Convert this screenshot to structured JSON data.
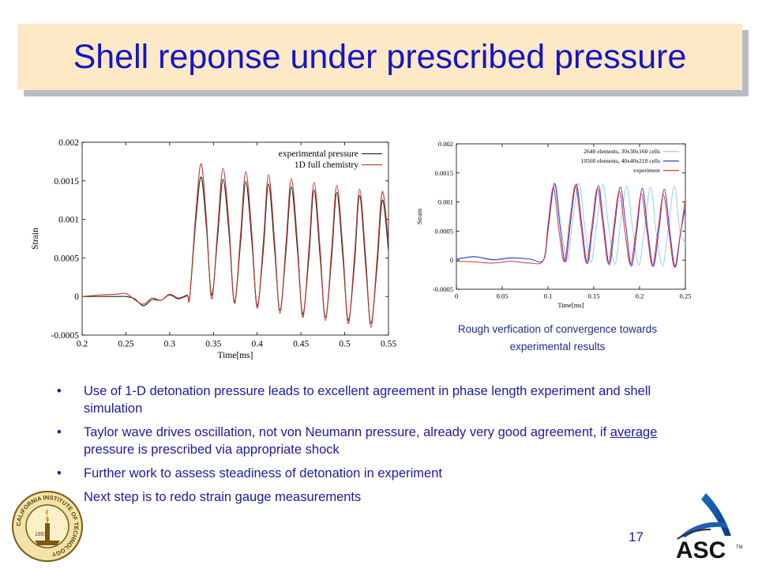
{
  "title": "Shell reponse under prescribed pressure",
  "page_number": "17",
  "caption": {
    "line1": "Rough verfication of convergence towards",
    "line2": "experimental results"
  },
  "bullets": [
    {
      "parts": [
        {
          "text": "Use of 1-D detonation pressure leads to excellent agreement in phase length experiment and shell simulation",
          "u": false
        }
      ]
    },
    {
      "parts": [
        {
          "text": "Taylor wave drives oscillation, not von Neumann pressure, already very good agreement, if ",
          "u": false
        },
        {
          "text": "average",
          "u": true
        },
        {
          "text": " pressure is prescribed via appropriate shock",
          "u": false
        }
      ]
    },
    {
      "parts": [
        {
          "text": "Further work to assess steadiness of detonation in experiment",
          "u": false
        }
      ]
    },
    {
      "parts": [
        {
          "text": "Next step is to redo strain gauge measurements",
          "u": false
        }
      ]
    }
  ],
  "bullet_glyph": "•",
  "logos": {
    "left": {
      "icon": "caltech-seal-icon",
      "ring_text": "CALIFORNIA INSTITUTE OF TECHNOLOGY",
      "year": "1891"
    },
    "right": {
      "icon": "asc-logo-icon",
      "text": "ASC",
      "tm": "TM"
    }
  },
  "chart_data": [
    {
      "type": "line",
      "title": "",
      "xlabel": "Time[ms]",
      "ylabel": "Strain",
      "xlim": [
        0.2,
        0.55
      ],
      "ylim": [
        -0.0005,
        0.002
      ],
      "xticks": [
        0.2,
        0.25,
        0.3,
        0.35,
        0.4,
        0.45,
        0.5,
        0.55
      ],
      "yticks": [
        -0.0005,
        0,
        0.0005,
        0.001,
        0.0015,
        0.002
      ],
      "xtick_labels": [
        "0.2",
        "0.25",
        "0.3",
        "0.35",
        "0.4",
        "0.45",
        "0.5",
        "0.55"
      ],
      "ytick_labels": [
        "-0.0005",
        "0",
        "0.0005",
        "0.001",
        "0.0015",
        "0.002"
      ],
      "legend_position": "top-right",
      "grid": false,
      "series": [
        {
          "name": "experimental pressure",
          "color": "#222222",
          "x": [
            0.2,
            0.24,
            0.25,
            0.26,
            0.27,
            0.28,
            0.29,
            0.3,
            0.31,
            0.32,
            0.323,
            0.33,
            0.336,
            0.342,
            0.348,
            0.355,
            0.361,
            0.368,
            0.374,
            0.381,
            0.387,
            0.394,
            0.4,
            0.407,
            0.413,
            0.42,
            0.426,
            0.433,
            0.439,
            0.446,
            0.452,
            0.459,
            0.465,
            0.472,
            0.478,
            0.485,
            0.491,
            0.498,
            0.504,
            0.511,
            0.517,
            0.524,
            0.53,
            0.537,
            0.543,
            0.55
          ],
          "y": [
            0,
            0,
            0,
            -3e-05,
            -0.00012,
            -4e-05,
            -5e-05,
            2e-05,
            -3e-05,
            1e-05,
            0,
            0.001,
            0.00155,
            0.0009,
            2e-05,
            0.0008,
            0.00152,
            0.0008,
            -7e-05,
            0.0007,
            0.00149,
            0.0007,
            -0.00012,
            0.0006,
            0.00146,
            0.0006,
            -0.00018,
            0.0006,
            0.00142,
            0.0006,
            -0.00023,
            0.0005,
            0.00138,
            0.0005,
            -0.00027,
            0.0005,
            0.00135,
            0.0005,
            -0.00031,
            0.0004,
            0.00131,
            0.0004,
            -0.00035,
            0.0004,
            0.00125,
            0.0006
          ]
        },
        {
          "name": "1D full chemistry",
          "color": "#c0392b",
          "x": [
            0.2,
            0.22,
            0.24,
            0.25,
            0.26,
            0.27,
            0.28,
            0.29,
            0.3,
            0.31,
            0.32,
            0.323,
            0.33,
            0.336,
            0.342,
            0.348,
            0.355,
            0.361,
            0.368,
            0.374,
            0.381,
            0.387,
            0.394,
            0.4,
            0.407,
            0.413,
            0.42,
            0.426,
            0.433,
            0.439,
            0.446,
            0.452,
            0.459,
            0.465,
            0.472,
            0.478,
            0.485,
            0.491,
            0.498,
            0.504,
            0.511,
            0.517,
            0.524,
            0.53,
            0.537,
            0.543,
            0.55
          ],
          "y": [
            0,
            2e-05,
            3e-05,
            4e-05,
            -4e-05,
            -0.0001,
            -2e-05,
            -5e-05,
            3e-05,
            -2e-05,
            2e-05,
            0,
            0.0011,
            0.00172,
            0.001,
            -3e-05,
            0.0009,
            0.00166,
            0.0009,
            -9e-05,
            0.0008,
            0.00162,
            0.0008,
            -0.00015,
            0.0007,
            0.00158,
            0.0007,
            -0.00022,
            0.0007,
            0.00153,
            0.0007,
            -0.00027,
            0.0006,
            0.00148,
            0.0006,
            -0.00031,
            0.0006,
            0.00144,
            0.0006,
            -0.00035,
            0.0005,
            0.00139,
            0.0005,
            -0.0004,
            0.0005,
            0.00136,
            0.0007
          ]
        }
      ]
    },
    {
      "type": "line",
      "title": "",
      "xlabel": "Time[ms]",
      "ylabel": "Strain",
      "xlim": [
        0,
        0.25
      ],
      "ylim": [
        -0.0005,
        0.002
      ],
      "xticks": [
        0,
        0.05,
        0.1,
        0.15,
        0.2,
        0.25
      ],
      "yticks": [
        -0.0005,
        0,
        0.0005,
        0.001,
        0.0015,
        0.002
      ],
      "xtick_labels": [
        "0",
        "0.05",
        "0.1",
        "0.15",
        "0.2",
        "0.25"
      ],
      "ytick_labels": [
        "-0.0005",
        "0",
        "0.0005",
        "0.001",
        "0.0015",
        "0.002"
      ],
      "legend_position": "top-right",
      "grid": false,
      "series": [
        {
          "name": "2640 elements, 30x30x160 cells",
          "color": "#8fd3f2",
          "x": [
            0,
            0.02,
            0.04,
            0.06,
            0.08,
            0.095,
            0.1,
            0.108,
            0.114,
            0.121,
            0.127,
            0.134,
            0.14,
            0.147,
            0.153,
            0.16,
            0.166,
            0.173,
            0.179,
            0.186,
            0.192,
            0.199,
            0.205,
            0.212,
            0.218,
            0.225,
            0.231,
            0.238,
            0.244,
            0.25
          ],
          "y": [
            1e-05,
            5e-05,
            0.0,
            3e-05,
            2e-05,
            0.0,
            0.0005,
            0.0013,
            0.0006,
            -1e-05,
            0.0007,
            0.00132,
            0.0006,
            -4e-05,
            0.0006,
            0.0013,
            0.0006,
            -7e-05,
            0.0006,
            0.00128,
            0.0006,
            -9e-05,
            0.0005,
            0.00126,
            0.0005,
            -0.0001,
            0.0005,
            0.00128,
            0.0005,
            0.0003
          ]
        },
        {
          "name": "10560 elements, 40x40x210 cells",
          "color": "#3a3ad6",
          "x": [
            0,
            0.02,
            0.04,
            0.06,
            0.08,
            0.095,
            0.1,
            0.107,
            0.113,
            0.119,
            0.125,
            0.131,
            0.137,
            0.143,
            0.149,
            0.155,
            0.161,
            0.167,
            0.173,
            0.179,
            0.185,
            0.191,
            0.197,
            0.203,
            0.209,
            0.215,
            0.221,
            0.227,
            0.233,
            0.239,
            0.245,
            0.25
          ],
          "y": [
            2e-05,
            6e-05,
            1e-05,
            4e-05,
            2e-05,
            0.0,
            0.0005,
            0.00132,
            0.0006,
            -3e-05,
            0.0007,
            0.00131,
            0.0006,
            -6e-05,
            0.0006,
            0.00128,
            0.0006,
            -8e-05,
            0.0006,
            0.00126,
            0.0006,
            -0.0001,
            0.0005,
            0.00124,
            0.0005,
            -0.00011,
            0.0005,
            0.00122,
            0.0005,
            -0.00012,
            0.0005,
            0.0009
          ]
        },
        {
          "name": "experiment",
          "color": "#e03030",
          "x": [
            0,
            0.02,
            0.04,
            0.06,
            0.08,
            0.095,
            0.1,
            0.106,
            0.112,
            0.118,
            0.124,
            0.13,
            0.136,
            0.142,
            0.148,
            0.154,
            0.16,
            0.166,
            0.172,
            0.178,
            0.184,
            0.19,
            0.196,
            0.202,
            0.208,
            0.214,
            0.22,
            0.226,
            0.232,
            0.238,
            0.244,
            0.25
          ],
          "y": [
            -2e-05,
            -3e-05,
            -5e-05,
            -2e-05,
            -5e-05,
            0.0,
            0.0006,
            0.00125,
            0.0005,
            -2e-05,
            0.0007,
            0.00128,
            0.0006,
            -5e-05,
            0.0006,
            0.00124,
            0.0006,
            -6e-05,
            0.0006,
            0.00118,
            0.0005,
            -8e-05,
            0.0005,
            0.00114,
            0.0005,
            -0.0001,
            0.0005,
            0.00112,
            0.0005,
            -0.00012,
            0.0004,
            0.00105
          ]
        }
      ]
    }
  ]
}
